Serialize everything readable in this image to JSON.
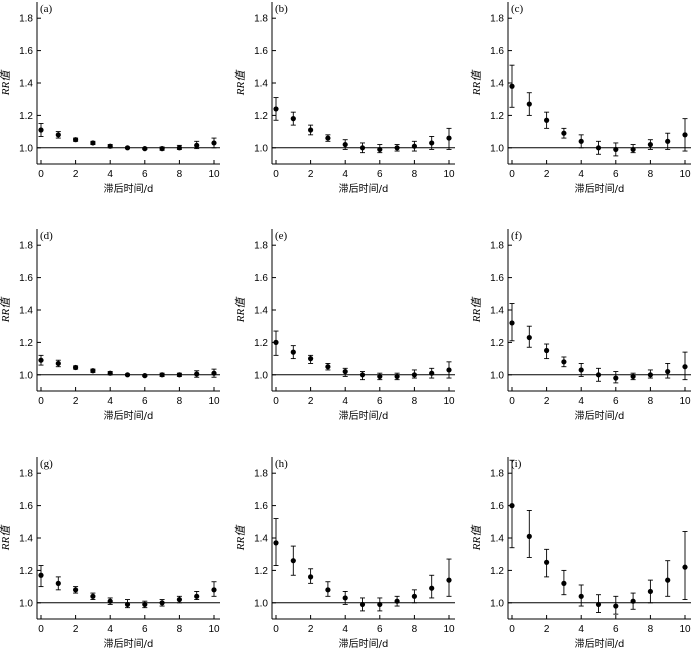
{
  "chart_data": [
    {
      "type": "scatter",
      "panel_label": "(a)",
      "xlabel": "滞后时间/d",
      "ylabel": "RR值",
      "xlim": [
        0,
        10
      ],
      "ylim": [
        0.9,
        1.9
      ],
      "xticks": [
        0,
        2,
        4,
        6,
        8,
        10
      ],
      "yticks": [
        1.0,
        1.2,
        1.4,
        1.6,
        1.8
      ],
      "ytick_labels": [
        "1.0",
        "1.2",
        "1.4",
        "1.6",
        "1.8"
      ],
      "reference_y": 1.0,
      "x": [
        0,
        1,
        2,
        3,
        4,
        5,
        6,
        7,
        8,
        9,
        10
      ],
      "y": [
        1.11,
        1.08,
        1.05,
        1.03,
        1.01,
        1.0,
        0.995,
        0.995,
        1.0,
        1.015,
        1.03
      ],
      "lower": [
        1.07,
        1.06,
        1.04,
        1.02,
        1.0,
        0.995,
        0.99,
        0.985,
        0.99,
        0.995,
        1.0
      ],
      "upper": [
        1.15,
        1.1,
        1.06,
        1.04,
        1.02,
        1.005,
        1.0,
        1.005,
        1.015,
        1.04,
        1.06
      ]
    },
    {
      "type": "scatter",
      "panel_label": "(b)",
      "xlabel": "滞后时间/d",
      "ylabel": "RR值",
      "xlim": [
        0,
        10
      ],
      "ylim": [
        0.9,
        1.9
      ],
      "xticks": [
        0,
        2,
        4,
        6,
        8,
        10
      ],
      "yticks": [
        1.0,
        1.2,
        1.4,
        1.6,
        1.8
      ],
      "ytick_labels": [
        "1.0",
        "1.2",
        "1.4",
        "1.6",
        "1.8"
      ],
      "reference_y": 1.0,
      "x": [
        0,
        1,
        2,
        3,
        4,
        5,
        6,
        7,
        8,
        9,
        10
      ],
      "y": [
        1.24,
        1.18,
        1.11,
        1.06,
        1.02,
        1.0,
        0.99,
        1.0,
        1.01,
        1.03,
        1.06
      ],
      "lower": [
        1.17,
        1.14,
        1.08,
        1.04,
        0.99,
        0.97,
        0.97,
        0.98,
        0.98,
        0.99,
        0.99
      ],
      "upper": [
        1.31,
        1.22,
        1.14,
        1.08,
        1.05,
        1.03,
        1.02,
        1.02,
        1.04,
        1.07,
        1.12
      ]
    },
    {
      "type": "scatter",
      "panel_label": "(c)",
      "xlabel": "滞后时间/d",
      "ylabel": "RR值",
      "xlim": [
        0,
        10
      ],
      "ylim": [
        0.9,
        1.9
      ],
      "xticks": [
        0,
        2,
        4,
        6,
        8,
        10
      ],
      "yticks": [
        1.0,
        1.2,
        1.4,
        1.6,
        1.8
      ],
      "ytick_labels": [
        "1.0",
        "1.2",
        "1.4",
        "1.6",
        "1.8"
      ],
      "reference_y": 1.0,
      "x": [
        0,
        1,
        2,
        3,
        4,
        5,
        6,
        7,
        8,
        9,
        10
      ],
      "y": [
        1.38,
        1.27,
        1.17,
        1.09,
        1.04,
        1.0,
        0.99,
        0.99,
        1.02,
        1.04,
        1.08
      ],
      "lower": [
        1.25,
        1.2,
        1.12,
        1.06,
        1.0,
        0.96,
        0.95,
        0.97,
        0.99,
        0.99,
        0.98
      ],
      "upper": [
        1.51,
        1.34,
        1.22,
        1.12,
        1.08,
        1.04,
        1.03,
        1.02,
        1.05,
        1.09,
        1.18
      ]
    },
    {
      "type": "scatter",
      "panel_label": "(d)",
      "xlabel": "滞后时间/d",
      "ylabel": "RR值",
      "xlim": [
        0,
        10
      ],
      "ylim": [
        0.9,
        1.9
      ],
      "xticks": [
        0,
        2,
        4,
        6,
        8,
        10
      ],
      "yticks": [
        1.0,
        1.2,
        1.4,
        1.6,
        1.8
      ],
      "ytick_labels": [
        "1.0",
        "1.2",
        "1.4",
        "1.6",
        "1.8"
      ],
      "reference_y": 1.0,
      "x": [
        0,
        1,
        2,
        3,
        4,
        5,
        6,
        7,
        8,
        9,
        10
      ],
      "y": [
        1.09,
        1.07,
        1.045,
        1.025,
        1.01,
        1.0,
        0.995,
        1.0,
        1.0,
        1.005,
        1.01
      ],
      "lower": [
        1.06,
        1.05,
        1.035,
        1.015,
        1.0,
        0.995,
        0.99,
        0.99,
        0.99,
        0.985,
        0.985
      ],
      "upper": [
        1.12,
        1.09,
        1.055,
        1.035,
        1.02,
        1.005,
        1.0,
        1.01,
        1.01,
        1.025,
        1.035
      ]
    },
    {
      "type": "scatter",
      "panel_label": "(e)",
      "xlabel": "滞后时间/d",
      "ylabel": "RR值",
      "xlim": [
        0,
        10
      ],
      "ylim": [
        0.9,
        1.9
      ],
      "xticks": [
        0,
        2,
        4,
        6,
        8,
        10
      ],
      "yticks": [
        1.0,
        1.2,
        1.4,
        1.6,
        1.8
      ],
      "ytick_labels": [
        "1.0",
        "1.2",
        "1.4",
        "1.6",
        "1.8"
      ],
      "reference_y": 1.0,
      "x": [
        0,
        1,
        2,
        3,
        4,
        5,
        6,
        7,
        8,
        9,
        10
      ],
      "y": [
        1.2,
        1.14,
        1.1,
        1.05,
        1.02,
        1.0,
        0.99,
        0.99,
        1.0,
        1.01,
        1.03
      ],
      "lower": [
        1.12,
        1.1,
        1.07,
        1.03,
        0.99,
        0.97,
        0.97,
        0.97,
        0.98,
        0.98,
        0.98
      ],
      "upper": [
        1.27,
        1.18,
        1.12,
        1.07,
        1.04,
        1.02,
        1.01,
        1.01,
        1.03,
        1.04,
        1.08
      ]
    },
    {
      "type": "scatter",
      "panel_label": "(f)",
      "xlabel": "滞后时间/d",
      "ylabel": "RR值",
      "xlim": [
        0,
        10
      ],
      "ylim": [
        0.9,
        1.9
      ],
      "xticks": [
        0,
        2,
        4,
        6,
        8,
        10
      ],
      "yticks": [
        1.0,
        1.2,
        1.4,
        1.6,
        1.8
      ],
      "ytick_labels": [
        "1.0",
        "1.2",
        "1.4",
        "1.6",
        "1.8"
      ],
      "reference_y": 1.0,
      "x": [
        0,
        1,
        2,
        3,
        4,
        5,
        6,
        7,
        8,
        9,
        10
      ],
      "y": [
        1.32,
        1.23,
        1.15,
        1.08,
        1.03,
        1.0,
        0.98,
        0.99,
        1.0,
        1.02,
        1.05
      ],
      "lower": [
        1.21,
        1.17,
        1.1,
        1.05,
        0.99,
        0.96,
        0.95,
        0.97,
        0.98,
        0.98,
        0.97
      ],
      "upper": [
        1.44,
        1.3,
        1.19,
        1.11,
        1.07,
        1.04,
        1.02,
        1.01,
        1.03,
        1.07,
        1.14
      ]
    },
    {
      "type": "scatter",
      "panel_label": "(g)",
      "xlabel": "滞后时间/d",
      "ylabel": "RR值",
      "xlim": [
        0,
        10
      ],
      "ylim": [
        0.9,
        1.9
      ],
      "xticks": [
        0,
        2,
        4,
        6,
        8,
        10
      ],
      "yticks": [
        1.0,
        1.2,
        1.4,
        1.6,
        1.8
      ],
      "ytick_labels": [
        "1.0",
        "1.2",
        "1.4",
        "1.6",
        "1.8"
      ],
      "reference_y": 1.0,
      "x": [
        0,
        1,
        2,
        3,
        4,
        5,
        6,
        7,
        8,
        9,
        10
      ],
      "y": [
        1.17,
        1.12,
        1.08,
        1.04,
        1.01,
        0.99,
        0.99,
        1.0,
        1.02,
        1.04,
        1.08
      ],
      "lower": [
        1.1,
        1.08,
        1.06,
        1.02,
        0.99,
        0.97,
        0.97,
        0.98,
        1.0,
        1.02,
        1.04
      ],
      "upper": [
        1.23,
        1.16,
        1.1,
        1.06,
        1.03,
        1.02,
        1.01,
        1.02,
        1.04,
        1.07,
        1.13
      ]
    },
    {
      "type": "scatter",
      "panel_label": "(h)",
      "xlabel": "滞后时间/d",
      "ylabel": "RR值",
      "xlim": [
        0,
        10
      ],
      "ylim": [
        0.9,
        1.9
      ],
      "xticks": [
        0,
        2,
        4,
        6,
        8,
        10
      ],
      "yticks": [
        1.0,
        1.2,
        1.4,
        1.6,
        1.8
      ],
      "ytick_labels": [
        "1.0",
        "1.2",
        "1.4",
        "1.6",
        "1.8"
      ],
      "reference_y": 1.0,
      "x": [
        0,
        1,
        2,
        3,
        4,
        5,
        6,
        7,
        8,
        9,
        10
      ],
      "y": [
        1.37,
        1.26,
        1.16,
        1.08,
        1.03,
        0.99,
        0.99,
        1.01,
        1.04,
        1.09,
        1.14
      ],
      "lower": [
        1.23,
        1.17,
        1.12,
        1.04,
        0.99,
        0.95,
        0.95,
        0.98,
        1.0,
        1.03,
        1.04
      ],
      "upper": [
        1.52,
        1.35,
        1.21,
        1.13,
        1.07,
        1.03,
        1.03,
        1.04,
        1.08,
        1.17,
        1.27
      ]
    },
    {
      "type": "scatter",
      "panel_label": "(i)",
      "xlabel": "滞后时间/d",
      "ylabel": "RR值",
      "xlim": [
        0,
        10
      ],
      "ylim": [
        0.9,
        1.9
      ],
      "xticks": [
        0,
        2,
        4,
        6,
        8,
        10
      ],
      "yticks": [
        1.0,
        1.2,
        1.4,
        1.6,
        1.8
      ],
      "ytick_labels": [
        "1.0",
        "1.2",
        "1.4",
        "1.6",
        "1.8"
      ],
      "reference_y": 1.0,
      "x": [
        0,
        1,
        2,
        3,
        4,
        5,
        6,
        7,
        8,
        9,
        10
      ],
      "y": [
        1.6,
        1.41,
        1.25,
        1.12,
        1.04,
        0.99,
        0.98,
        1.01,
        1.07,
        1.14,
        1.22
      ],
      "lower": [
        1.34,
        1.28,
        1.16,
        1.05,
        0.98,
        0.94,
        0.93,
        0.96,
        1.0,
        1.04,
        1.02
      ],
      "upper": [
        1.88,
        1.57,
        1.33,
        1.2,
        1.11,
        1.05,
        1.04,
        1.06,
        1.14,
        1.26,
        1.44
      ]
    }
  ]
}
